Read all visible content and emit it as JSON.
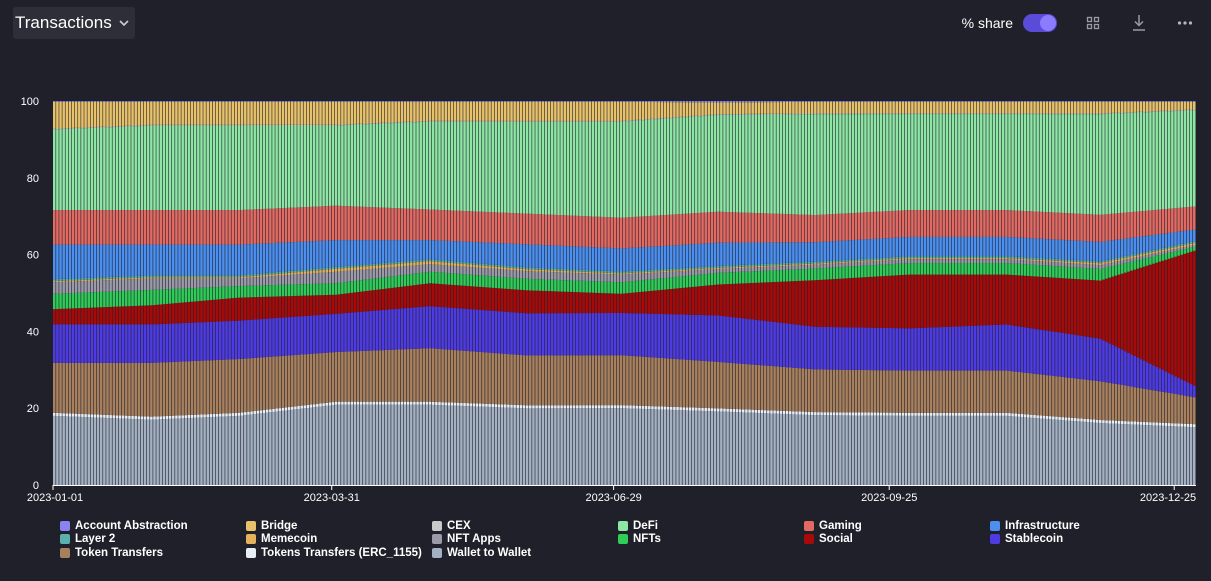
{
  "header": {
    "title": "Transactions",
    "share_label": "% share",
    "share_toggle_on": true,
    "icons": [
      "chevron-down-icon",
      "grid-icon",
      "download-icon",
      "more-icon"
    ]
  },
  "chart_data": {
    "type": "area",
    "stacking": "percent",
    "title": "",
    "xlabel": "",
    "ylabel": "",
    "ylim": [
      0,
      100
    ],
    "y_ticks": [
      "0",
      "20",
      "40",
      "60",
      "80",
      "100"
    ],
    "x_ticks": [
      "2023-01-01",
      "2023-03-31",
      "2023-06-29",
      "2023-09-25",
      "2023-12-25"
    ],
    "x_range": [
      "2023-01-01",
      "2023-12-31"
    ],
    "grid": false,
    "legend_position": "bottom",
    "x": [
      "2023-01-01",
      "2023-02-01",
      "2023-03-01",
      "2023-04-01",
      "2023-05-01",
      "2023-06-01",
      "2023-07-01",
      "2023-08-01",
      "2023-09-01",
      "2023-10-01",
      "2023-11-01",
      "2023-12-01",
      "2023-12-31"
    ],
    "series": [
      {
        "name": "Wallet to Wallet",
        "color": "#a3b1c2",
        "values": [
          18,
          17,
          18,
          21,
          21,
          20,
          20,
          19,
          18,
          18,
          18,
          16,
          15
        ]
      },
      {
        "name": "Tokens Transfers (ERC_1155)",
        "color": "#e8eef5",
        "values": [
          0.8,
          0.8,
          0.8,
          0.8,
          0.8,
          0.8,
          0.8,
          0.8,
          0.8,
          0.8,
          0.8,
          0.8,
          0.8
        ]
      },
      {
        "name": "Token Transfers",
        "color": "#a8805e",
        "values": [
          13,
          14,
          14,
          13,
          14,
          13,
          13,
          12,
          11,
          11,
          11,
          10,
          7
        ]
      },
      {
        "name": "Stablecoin",
        "color": "#4f3be3",
        "values": [
          10,
          10,
          10,
          10,
          11,
          11,
          11,
          12,
          11,
          11,
          12,
          11,
          3
        ]
      },
      {
        "name": "Social",
        "color": "#a80a0a",
        "values": [
          4,
          5,
          6,
          5,
          6,
          6,
          5,
          8,
          12,
          14,
          13,
          15,
          35
        ]
      },
      {
        "name": "NFTs",
        "color": "#2fcc57",
        "values": [
          4,
          4,
          3,
          3,
          3,
          3,
          3,
          3,
          3,
          3,
          3,
          3,
          1
        ]
      },
      {
        "name": "NFT Apps",
        "color": "#9a9aa8",
        "values": [
          3,
          3,
          2,
          3,
          2,
          2,
          2,
          1,
          1,
          1,
          1,
          1,
          0.5
        ]
      },
      {
        "name": "Memecoin",
        "color": "#e6b15d",
        "values": [
          0.3,
          0.3,
          0.3,
          0.8,
          0.8,
          0.5,
          0.3,
          0.3,
          0.3,
          0.3,
          0.3,
          0.5,
          0.5
        ]
      },
      {
        "name": "Layer 2",
        "color": "#5cb0ab",
        "values": [
          0.5,
          0.5,
          0.5,
          0.5,
          0.5,
          0.5,
          0.5,
          0.5,
          0.5,
          0.5,
          0.5,
          0.5,
          0.5
        ]
      },
      {
        "name": "Infrastructure",
        "color": "#4b8ff0",
        "values": [
          9,
          8,
          8,
          7,
          5,
          6,
          6,
          6,
          5,
          5,
          5,
          5,
          3
        ]
      },
      {
        "name": "Gaming",
        "color": "#e36a63",
        "values": [
          9,
          9,
          9,
          9,
          8,
          8,
          8,
          8,
          7,
          7,
          7,
          7,
          6
        ]
      },
      {
        "name": "DeFi",
        "color": "#8ee6a5",
        "values": [
          21,
          22,
          22,
          21,
          23,
          24,
          25,
          25,
          26,
          25,
          25,
          26,
          25
        ]
      },
      {
        "name": "CEX",
        "color": "#c9c9c9",
        "values": [
          0.2,
          0.2,
          0.2,
          0.2,
          0.2,
          0.2,
          0.2,
          0.2,
          0.2,
          0.2,
          0.2,
          0.2,
          0.2
        ]
      },
      {
        "name": "Bridge",
        "color": "#e8c26a",
        "values": [
          7,
          6,
          6,
          6,
          5,
          5,
          5,
          3,
          3,
          3,
          3,
          3,
          2
        ]
      },
      {
        "name": "Account Abstraction",
        "color": "#8a84f0",
        "values": [
          0.2,
          0.2,
          0.2,
          0.2,
          0.2,
          0.2,
          0.2,
          0.4,
          0.2,
          0.2,
          0.2,
          0.2,
          0.2
        ]
      }
    ],
    "legend": [
      {
        "name": "Account Abstraction",
        "color": "#8a84f0"
      },
      {
        "name": "Bridge",
        "color": "#e8c26a"
      },
      {
        "name": "CEX",
        "color": "#c9c9c9"
      },
      {
        "name": "DeFi",
        "color": "#8ee6a5"
      },
      {
        "name": "Gaming",
        "color": "#e36a63"
      },
      {
        "name": "Infrastructure",
        "color": "#4b8ff0"
      },
      {
        "name": "Layer 2",
        "color": "#5cb0ab"
      },
      {
        "name": "Memecoin",
        "color": "#e6b15d"
      },
      {
        "name": "NFT Apps",
        "color": "#9a9aa8"
      },
      {
        "name": "NFTs",
        "color": "#2fcc57"
      },
      {
        "name": "Social",
        "color": "#a80a0a"
      },
      {
        "name": "Stablecoin",
        "color": "#4f3be3"
      },
      {
        "name": "Token Transfers",
        "color": "#a8805e"
      },
      {
        "name": "Tokens Transfers (ERC_1155)",
        "color": "#e8eef5"
      },
      {
        "name": "Wallet to Wallet",
        "color": "#a3b1c2"
      }
    ]
  }
}
